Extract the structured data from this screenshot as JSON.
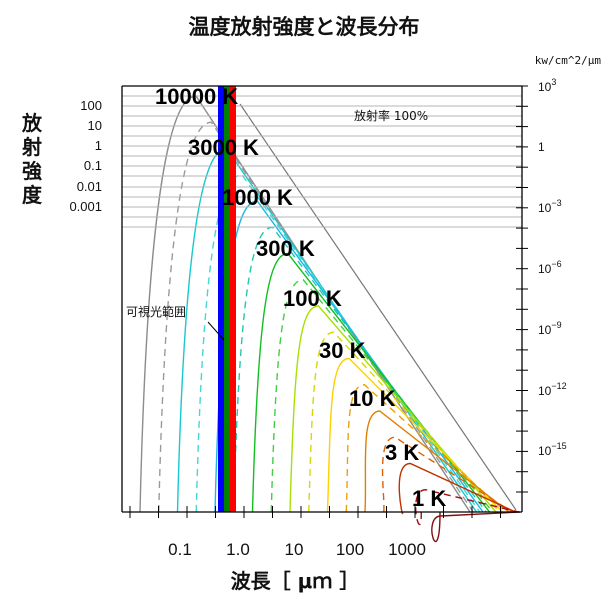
{
  "chart_data": {
    "type": "line",
    "title": "温度放射強度と波長分布",
    "xlabel": "波長［ μｍ ］",
    "ylabel": "放射強度",
    "right_unit": "kw/cm^2/μm",
    "x_scale": "log",
    "y_scale": "log",
    "x_ticks": [
      "0.1",
      "1.0",
      "10",
      "100",
      "1000"
    ],
    "left_ticks": [
      "100",
      "10",
      "1",
      "0.1",
      "0.01",
      "0.001"
    ],
    "right_ticks": [
      {
        "base": "10",
        "exp": "3"
      },
      {
        "base": "1",
        "exp": ""
      },
      {
        "base": "10",
        "exp": "−3"
      },
      {
        "base": "10",
        "exp": "−6"
      },
      {
        "base": "10",
        "exp": "−9"
      },
      {
        "base": "10",
        "exp": "−12"
      },
      {
        "base": "10",
        "exp": "−15"
      }
    ],
    "emissivity_note": "放射率 100%",
    "visible_range_label": "可視光範囲",
    "visible_band": {
      "x_range_um": [
        0.38,
        0.78
      ],
      "colors": [
        "#0000ff",
        "#008000",
        "#ff0000"
      ]
    },
    "series": [
      {
        "name": "10000 K",
        "temperature_K": 10000,
        "color": "#8c8c8c"
      },
      {
        "name": "3000 K",
        "temperature_K": 3000,
        "color": "#18c8d0"
      },
      {
        "name": "1000 K",
        "temperature_K": 1000,
        "color": "#18b8e8"
      },
      {
        "name": "300 K",
        "temperature_K": 300,
        "color": "#10c020"
      },
      {
        "name": "100 K",
        "temperature_K": 100,
        "color": "#d8d800"
      },
      {
        "name": "30 K",
        "temperature_K": 30,
        "color": "#f0a000"
      },
      {
        "name": "10 K",
        "temperature_K": 10,
        "color": "#e06000"
      },
      {
        "name": "3 K",
        "temperature_K": 3,
        "color": "#a01010"
      },
      {
        "name": "1 K",
        "temperature_K": 1,
        "color": "#a01010"
      }
    ],
    "curve_palette": [
      "#8c8c8c",
      "#9a9a9a",
      "#18c8d0",
      "#40d8d8",
      "#18b8e8",
      "#20c8b0",
      "#10c020",
      "#40d040",
      "#a8e000",
      "#d8d800",
      "#ffd000",
      "#f0a000",
      "#e08000",
      "#e06000",
      "#c03000",
      "#a01010",
      "#801010"
    ],
    "grid": true
  }
}
